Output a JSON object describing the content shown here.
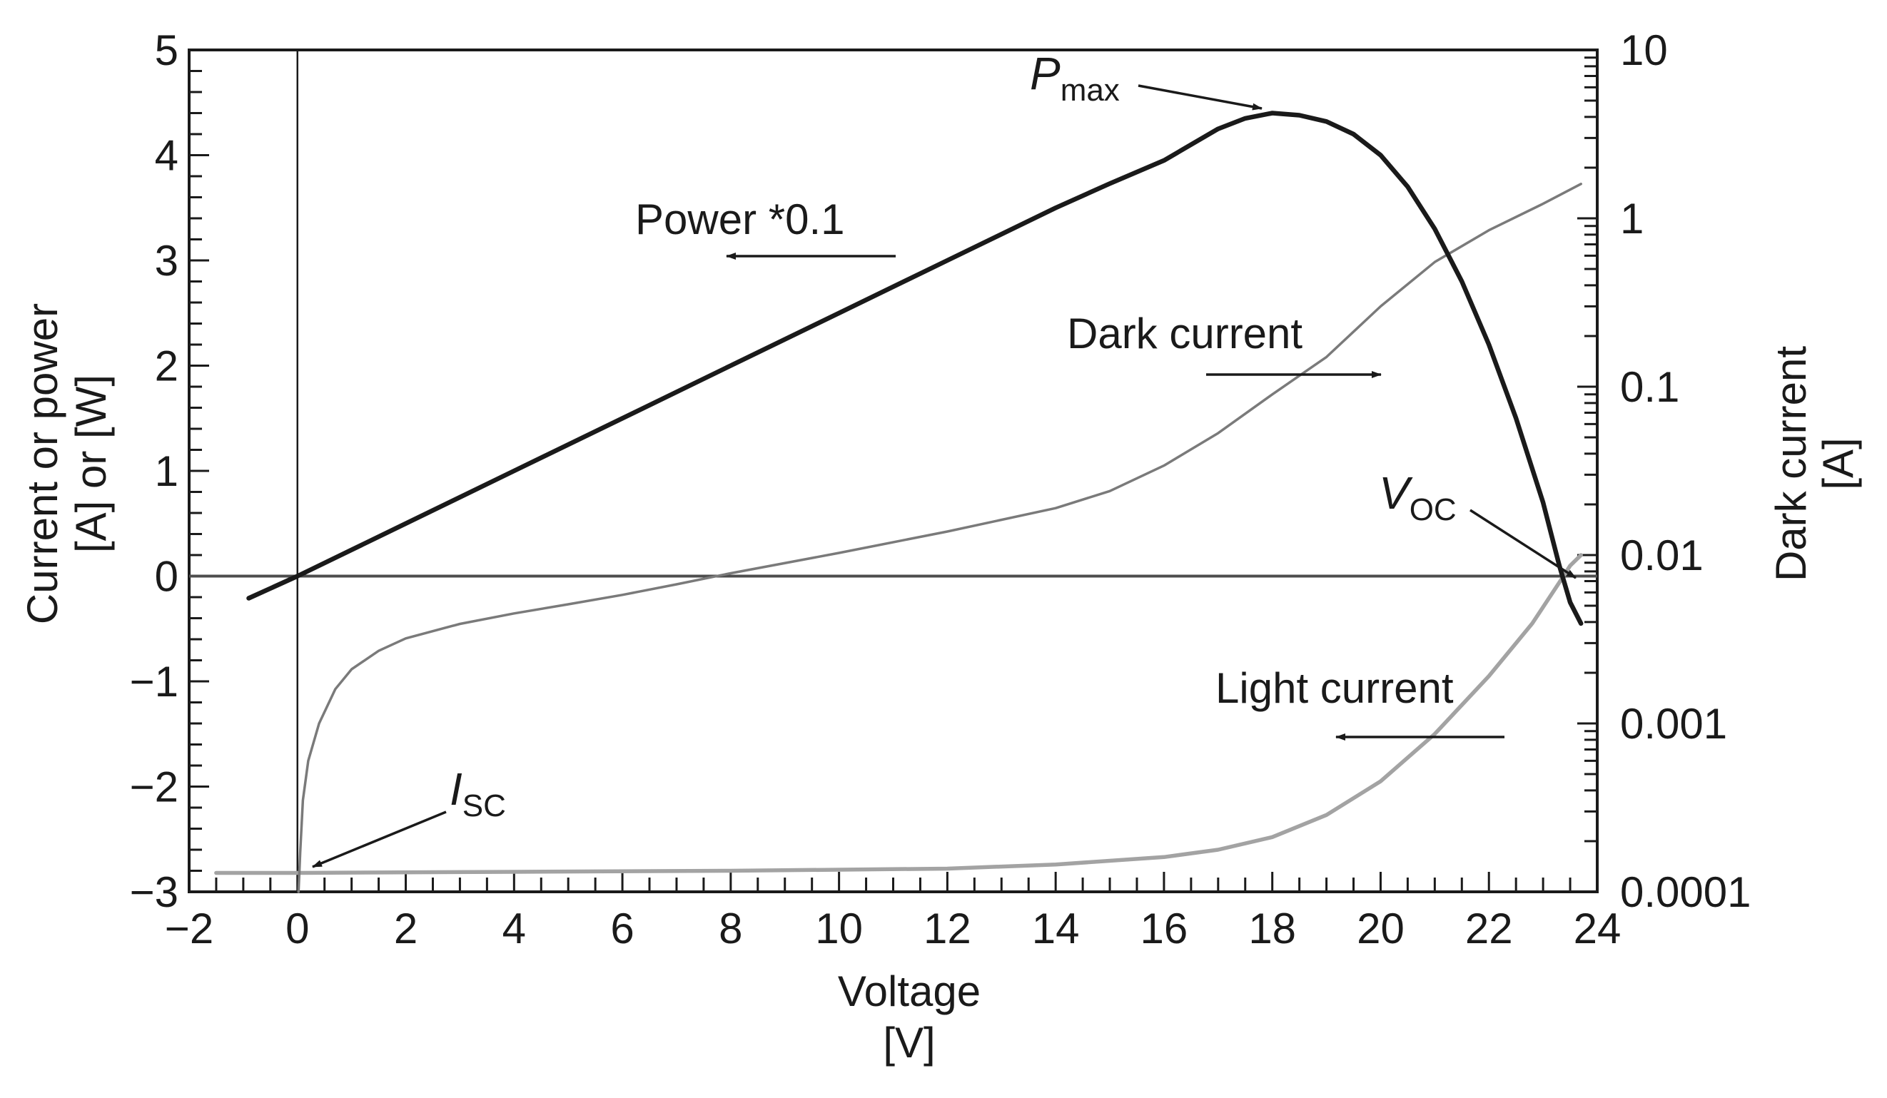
{
  "chart_data": {
    "type": "line",
    "xlabel": [
      "Voltage",
      "[V]"
    ],
    "ylabel_left": [
      "Current or power",
      "[A] or [W]"
    ],
    "ylabel_right": [
      "Dark current",
      "[A]"
    ],
    "xlim": [
      -2,
      24
    ],
    "ylim_left": [
      -3,
      5
    ],
    "ylim_right_log": [
      0.0001,
      10
    ],
    "x_ticks": [
      {
        "v": -2,
        "label": "−2"
      },
      {
        "v": 0,
        "label": "0"
      },
      {
        "v": 2,
        "label": "2"
      },
      {
        "v": 4,
        "label": "4"
      },
      {
        "v": 6,
        "label": "6"
      },
      {
        "v": 8,
        "label": "8"
      },
      {
        "v": 10,
        "label": "10"
      },
      {
        "v": 12,
        "label": "12"
      },
      {
        "v": 14,
        "label": "14"
      },
      {
        "v": 16,
        "label": "16"
      },
      {
        "v": 18,
        "label": "18"
      },
      {
        "v": 20,
        "label": "20"
      },
      {
        "v": 22,
        "label": "22"
      },
      {
        "v": 24,
        "label": "24"
      }
    ],
    "y_left_ticks": [
      {
        "v": 5,
        "label": "5"
      },
      {
        "v": 4,
        "label": "4"
      },
      {
        "v": 3,
        "label": "3"
      },
      {
        "v": 2,
        "label": "2"
      },
      {
        "v": 1,
        "label": "1"
      },
      {
        "v": 0,
        "label": "0"
      },
      {
        "v": -1,
        "label": "−1"
      },
      {
        "v": -2,
        "label": "−2"
      },
      {
        "v": -3,
        "label": "−3"
      }
    ],
    "y_right_ticks": [
      {
        "v": 10,
        "label": "10"
      },
      {
        "v": 1,
        "label": "1"
      },
      {
        "v": 0.1,
        "label": "0.1"
      },
      {
        "v": 0.01,
        "label": "0.01"
      },
      {
        "v": 0.001,
        "label": "0.001"
      },
      {
        "v": 0.0001,
        "label": "0.0001"
      }
    ],
    "series": [
      {
        "name": "Power *0.1",
        "axis": "left",
        "color": "#1a1a1a",
        "stroke_weight": "bold",
        "points": [
          [
            -0.9,
            -0.21
          ],
          [
            0,
            0
          ],
          [
            2,
            0.5
          ],
          [
            4,
            1.0
          ],
          [
            6,
            1.5
          ],
          [
            8,
            2.0
          ],
          [
            10,
            2.5
          ],
          [
            12,
            3.0
          ],
          [
            14,
            3.5
          ],
          [
            15,
            3.73
          ],
          [
            16,
            3.95
          ],
          [
            17,
            4.25
          ],
          [
            17.5,
            4.35
          ],
          [
            18,
            4.4
          ],
          [
            18.5,
            4.38
          ],
          [
            19,
            4.32
          ],
          [
            19.5,
            4.2
          ],
          [
            20,
            4.0
          ],
          [
            20.5,
            3.7
          ],
          [
            21,
            3.3
          ],
          [
            21.5,
            2.8
          ],
          [
            22,
            2.2
          ],
          [
            22.5,
            1.5
          ],
          [
            23,
            0.7
          ],
          [
            23.3,
            0.1
          ],
          [
            23.5,
            -0.25
          ],
          [
            23.7,
            -0.45
          ]
        ]
      },
      {
        "name": "Dark current",
        "axis": "right_log",
        "color": "#7a7a7a",
        "stroke_weight": "thin",
        "points": [
          [
            0.02,
            0.0001
          ],
          [
            0.05,
            0.00017
          ],
          [
            0.1,
            0.00035
          ],
          [
            0.2,
            0.0006
          ],
          [
            0.4,
            0.001
          ],
          [
            0.7,
            0.0016
          ],
          [
            1.0,
            0.0021
          ],
          [
            1.5,
            0.0027
          ],
          [
            2.0,
            0.0032
          ],
          [
            3.0,
            0.0039
          ],
          [
            4.0,
            0.0045
          ],
          [
            5.0,
            0.0051
          ],
          [
            6.0,
            0.0058
          ],
          [
            7.0,
            0.0067
          ],
          [
            8.0,
            0.0078
          ],
          [
            10.0,
            0.0103
          ],
          [
            12.0,
            0.0138
          ],
          [
            14.0,
            0.019
          ],
          [
            15.0,
            0.024
          ],
          [
            16.0,
            0.034
          ],
          [
            17.0,
            0.053
          ],
          [
            18.0,
            0.09
          ],
          [
            19.0,
            0.15
          ],
          [
            20.0,
            0.3
          ],
          [
            21.0,
            0.55
          ],
          [
            22.0,
            0.85
          ],
          [
            23.0,
            1.22
          ],
          [
            23.7,
            1.6
          ]
        ]
      },
      {
        "name": "Light current",
        "axis": "left",
        "color": "#a3a3a3",
        "stroke_weight": "medium",
        "points": [
          [
            -1.5,
            -2.82
          ],
          [
            0,
            -2.82
          ],
          [
            4,
            -2.81
          ],
          [
            8,
            -2.8
          ],
          [
            12,
            -2.78
          ],
          [
            14,
            -2.74
          ],
          [
            16,
            -2.67
          ],
          [
            17,
            -2.6
          ],
          [
            18,
            -2.48
          ],
          [
            19,
            -2.27
          ],
          [
            20,
            -1.95
          ],
          [
            21,
            -1.5
          ],
          [
            22,
            -0.95
          ],
          [
            22.8,
            -0.45
          ],
          [
            23.3,
            -0.06
          ],
          [
            23.5,
            0.1
          ],
          [
            23.7,
            0.2
          ]
        ]
      }
    ],
    "annotations": [
      {
        "name": "pmax",
        "italic": "P",
        "sub": "max"
      },
      {
        "name": "power",
        "text": "Power *0.1"
      },
      {
        "name": "dark",
        "text": "Dark current"
      },
      {
        "name": "voc",
        "italic": "V",
        "sub": "OC"
      },
      {
        "name": "light",
        "text": "Light current"
      },
      {
        "name": "isc",
        "italic": "I",
        "sub": "SC"
      }
    ],
    "grid": false
  }
}
